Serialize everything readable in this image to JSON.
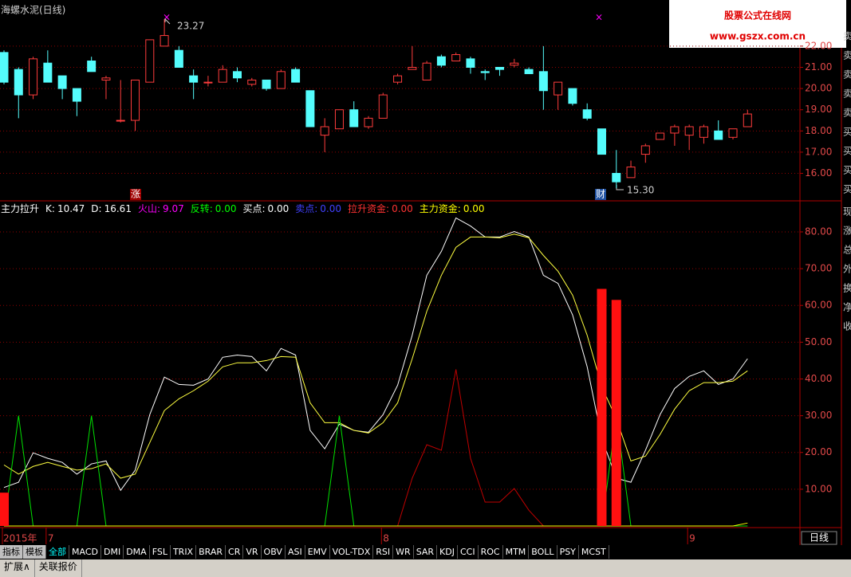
{
  "chart_data": [
    {
      "type": "candlestick",
      "title": "海螺水泥(日线)",
      "open": [
        21.7,
        20.9,
        19.7,
        21.2,
        20.6,
        20.0,
        21.3,
        20.4,
        18.5,
        18.5,
        20.3,
        22.0,
        21.8,
        20.6,
        20.3,
        20.3,
        20.8,
        20.2,
        20.4,
        20.0,
        20.9,
        19.9,
        17.8,
        18.1,
        19.0,
        18.2,
        18.6,
        20.3,
        20.9,
        20.4,
        21.5,
        21.3,
        21.4,
        20.8,
        21.0,
        21.1,
        20.9,
        20.8,
        19.7,
        20.0,
        19.0,
        18.1,
        16.0,
        15.8,
        16.9,
        17.6,
        17.9,
        17.8,
        17.7,
        18.0,
        17.7,
        18.2
      ],
      "high": [
        21.8,
        21.0,
        21.5,
        21.8,
        20.6,
        20.0,
        21.5,
        20.6,
        20.4,
        20.4,
        22.3,
        23.27,
        22.0,
        20.9,
        20.6,
        21.1,
        21.0,
        20.5,
        20.4,
        20.9,
        21.0,
        19.9,
        18.6,
        19.0,
        19.4,
        18.7,
        19.8,
        20.7,
        22.0,
        21.3,
        21.6,
        21.7,
        21.5,
        20.9,
        21.0,
        21.4,
        21.0,
        22.0,
        20.3,
        20.0,
        19.3,
        18.1,
        17.1,
        16.6,
        17.4,
        17.9,
        18.3,
        18.3,
        18.3,
        18.5,
        18.1,
        19.0
      ],
      "low": [
        20.2,
        18.6,
        19.5,
        20.3,
        19.5,
        18.7,
        20.8,
        19.5,
        18.4,
        18.0,
        20.3,
        22.0,
        21.0,
        19.5,
        20.1,
        20.3,
        20.3,
        20.1,
        19.9,
        20.0,
        20.3,
        18.2,
        17.0,
        18.1,
        18.2,
        18.1,
        18.6,
        20.2,
        20.9,
        20.4,
        21.0,
        21.3,
        20.7,
        20.4,
        20.6,
        21.0,
        20.7,
        19.0,
        19.0,
        19.2,
        18.5,
        16.9,
        15.3,
        15.8,
        16.5,
        17.6,
        17.3,
        17.1,
        17.4,
        17.6,
        17.6,
        18.2
      ],
      "close": [
        20.3,
        19.7,
        21.4,
        20.3,
        20.0,
        19.4,
        20.8,
        20.5,
        18.5,
        20.4,
        22.3,
        22.5,
        21.0,
        20.3,
        20.3,
        20.9,
        20.5,
        20.4,
        20.0,
        20.8,
        20.3,
        18.2,
        18.2,
        19.0,
        18.2,
        18.6,
        19.7,
        20.6,
        21.0,
        21.2,
        21.1,
        21.6,
        21.0,
        20.75,
        20.9,
        21.2,
        20.7,
        19.9,
        20.3,
        19.3,
        18.6,
        16.9,
        15.6,
        16.3,
        17.3,
        17.9,
        18.2,
        18.2,
        18.2,
        17.6,
        18.1,
        18.8
      ],
      "up_color": "#ff3c3c",
      "down_color": "#54fcfc",
      "ylim": [
        14.78,
        24.1
      ],
      "yticks": [
        {
          "value": 16,
          "label": "16.00"
        },
        {
          "value": 17,
          "label": "17.00"
        },
        {
          "value": 18,
          "label": "18.00"
        },
        {
          "value": 19,
          "label": "19.00"
        },
        {
          "value": 20,
          "label": "20.00"
        },
        {
          "value": 21,
          "label": "21.00"
        },
        {
          "value": 22,
          "label": "22.00"
        }
      ],
      "grid": true,
      "annotations": [
        "23.27",
        "15.30"
      ],
      "badges": [
        "涨",
        "财"
      ]
    },
    {
      "type": "indicator",
      "title": "主力拉升",
      "legend": [
        {
          "name": "K:",
          "value": "10.47",
          "color": "#ffffff"
        },
        {
          "name": "D:",
          "value": "16.61",
          "color": "#ffffff"
        },
        {
          "name": "火山:",
          "value": "9.07",
          "color": "#ff00ff"
        },
        {
          "name": "反转:",
          "value": "0.00",
          "color": "#00ff00"
        },
        {
          "name": "买点:",
          "value": "0.00",
          "color": "#ffffff"
        },
        {
          "name": "卖点:",
          "value": "0.00",
          "color": "#4040ff"
        },
        {
          "name": "拉升资金:",
          "value": "0.00",
          "color": "#ff3232"
        },
        {
          "name": "主力资金:",
          "value": "0.00",
          "color": "#ffff00"
        }
      ],
      "categories": [
        "2015年",
        null,
        null,
        "7",
        null,
        null,
        null,
        null,
        null,
        null,
        null,
        null,
        null,
        null,
        null,
        null,
        null,
        null,
        null,
        null,
        null,
        null,
        null,
        null,
        null,
        null,
        "8",
        null,
        null,
        null,
        null,
        null,
        null,
        null,
        null,
        null,
        null,
        null,
        null,
        null,
        null,
        null,
        null,
        null,
        null,
        null,
        null,
        "9",
        null,
        null,
        null,
        null
      ],
      "series": [
        {
          "kind": "line",
          "color": "#ffffff",
          "values": [
            10.47,
            11.9,
            19.9,
            18.4,
            17.3,
            14.1,
            16.9,
            17.7,
            9.7,
            15.2,
            30.3,
            40.5,
            38.5,
            38.3,
            40.0,
            45.9,
            46.5,
            46.1,
            42.2,
            48.3,
            46.5,
            26.0,
            21.0,
            27.7,
            26.0,
            25.5,
            30.3,
            38.3,
            51.9,
            68.2,
            74.7,
            83.8,
            81.6,
            78.6,
            78.6,
            80.1,
            78.6,
            68.2,
            66.0,
            57.4,
            43.3,
            23.8,
            13.0,
            11.9,
            20.6,
            30.3,
            37.4,
            40.7,
            42.2,
            38.5,
            40.0,
            45.5
          ]
        },
        {
          "kind": "line",
          "color": "#ffff40",
          "values": [
            16.61,
            14.1,
            16.2,
            17.3,
            16.2,
            15.2,
            15.6,
            16.9,
            13.0,
            14.1,
            22.7,
            31.4,
            34.6,
            36.8,
            39.4,
            43.3,
            44.4,
            44.4,
            45.0,
            46.1,
            45.9,
            33.5,
            28.1,
            28.1,
            26.0,
            25.3,
            28.1,
            33.5,
            45.5,
            58.4,
            68.2,
            75.8,
            78.6,
            78.6,
            78.4,
            79.4,
            78.4,
            73.6,
            69.3,
            62.8,
            51.9,
            37.9,
            29.2,
            17.7,
            19.0,
            24.9,
            31.8,
            36.8,
            39.0,
            39.0,
            39.4,
            42.2
          ]
        },
        {
          "kind": "line",
          "color": "#00e000",
          "values": [
            0,
            30,
            0,
            0,
            0,
            0,
            30,
            0,
            0,
            0,
            0,
            0,
            0,
            0,
            0,
            0,
            0,
            0,
            0,
            0,
            0,
            0,
            0,
            30,
            0,
            0,
            0,
            0,
            0,
            0,
            0,
            0,
            0,
            0,
            0,
            0,
            0,
            0,
            0,
            0,
            0,
            0,
            30,
            0,
            0,
            0,
            0,
            0,
            0,
            0,
            0,
            0
          ]
        },
        {
          "kind": "line",
          "color": "#c00000",
          "values": [
            null,
            null,
            null,
            null,
            null,
            null,
            null,
            null,
            null,
            null,
            null,
            null,
            null,
            null,
            null,
            null,
            null,
            null,
            null,
            null,
            null,
            null,
            null,
            null,
            null,
            null,
            0,
            0,
            13,
            22.1,
            20.6,
            42.6,
            18.4,
            6.5,
            6.5,
            10.2,
            4.3,
            0,
            0,
            null,
            null,
            null,
            null,
            null,
            null,
            null,
            null,
            null,
            null,
            null,
            null,
            null
          ]
        },
        {
          "kind": "line",
          "color": "#ffff00",
          "values": [
            0,
            0,
            0,
            0,
            0,
            0,
            0,
            0,
            0,
            0,
            0,
            0,
            0,
            0,
            0,
            0,
            0,
            0,
            0,
            0,
            0,
            0,
            0,
            0,
            0,
            0,
            0,
            0,
            0,
            0,
            0,
            0,
            0,
            0,
            0,
            0,
            0,
            0,
            0,
            0,
            0,
            0,
            0,
            0,
            0,
            0,
            0,
            0,
            0,
            0,
            0,
            0.8
          ]
        },
        {
          "kind": "bar",
          "color": "#ff1010",
          "values": [
            9.07,
            null,
            null,
            null,
            null,
            null,
            null,
            null,
            null,
            null,
            null,
            null,
            null,
            null,
            null,
            null,
            null,
            null,
            null,
            null,
            null,
            null,
            null,
            null,
            null,
            null,
            null,
            null,
            null,
            null,
            null,
            null,
            null,
            null,
            null,
            null,
            null,
            null,
            null,
            null,
            null,
            64.5,
            61.5,
            null,
            null,
            null,
            null,
            null,
            null,
            null,
            null,
            null
          ]
        }
      ],
      "ylim": [
        0,
        87.8
      ],
      "yticks": [
        {
          "value": 10,
          "label": "10.00"
        },
        {
          "value": 20,
          "label": "20.00"
        },
        {
          "value": 30,
          "label": "30.00"
        },
        {
          "value": 40,
          "label": "40.00"
        },
        {
          "value": 50,
          "label": "50.00"
        },
        {
          "value": 60,
          "label": "60.00"
        },
        {
          "value": 70,
          "label": "70.00"
        },
        {
          "value": 80,
          "label": "80.00"
        }
      ],
      "grid": true,
      "period_label": "日线"
    }
  ],
  "watermark": {
    "title": "股票公式在线网",
    "url": "www.gszx.com.cn"
  },
  "side_panel": {
    "top": [
      "卖",
      "卖",
      "卖",
      "卖",
      "卖",
      "买",
      "买",
      "买",
      "买"
    ],
    "bottom": [
      "现",
      "涨",
      "总",
      "外",
      "换",
      "净",
      "收"
    ]
  },
  "tabs": [
    "指标",
    "模板",
    "全部",
    "MACD",
    "DMI",
    "DMA",
    "FSL",
    "TRIX",
    "BRAR",
    "CR",
    "VR",
    "OBV",
    "ASI",
    "EMV",
    "VOL-TDX",
    "RSI",
    "WR",
    "SAR",
    "KDJ",
    "CCI",
    "ROC",
    "MTM",
    "BOLL",
    "PSY",
    "MCST"
  ],
  "footer": [
    "扩展∧",
    "关联报价"
  ]
}
